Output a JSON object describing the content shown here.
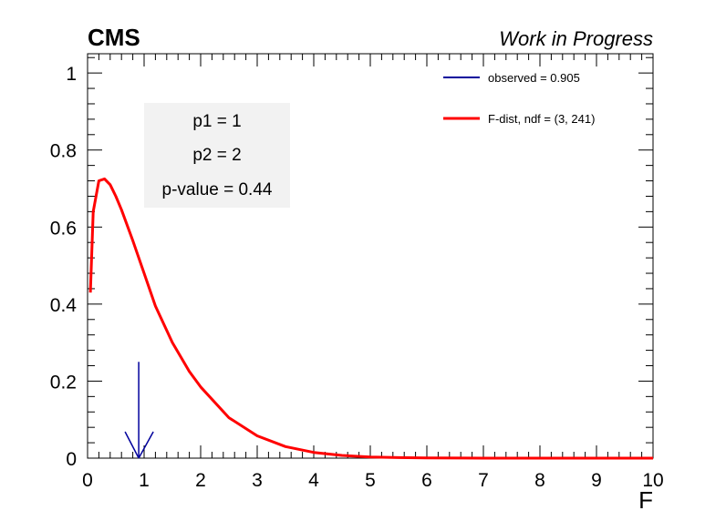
{
  "header": {
    "experiment": "CMS",
    "status": "Work in Progress"
  },
  "chart_data": {
    "type": "line",
    "xlabel": "F",
    "ylabel": "",
    "xlim": [
      0,
      10
    ],
    "ylim": [
      0,
      1.05
    ],
    "x_ticks": [
      0,
      1,
      2,
      3,
      4,
      5,
      6,
      7,
      8,
      9,
      10
    ],
    "x_tick_labels": [
      "0",
      "1",
      "2",
      "3",
      "4",
      "5",
      "6",
      "7",
      "8",
      "9",
      "10"
    ],
    "y_ticks": [
      0,
      0.2,
      0.4,
      0.6,
      0.8,
      1
    ],
    "y_tick_labels": [
      "0",
      "0.2",
      "0.4",
      "0.6",
      "0.8",
      "1"
    ],
    "grid": false,
    "legend_position": "top-right",
    "series": [
      {
        "name": "F-dist, ndf = (3, 241)",
        "color": "#ff0000",
        "x": [
          0.05,
          0.1,
          0.2,
          0.3,
          0.4,
          0.5,
          0.6,
          0.8,
          1.0,
          1.2,
          1.5,
          1.8,
          2.0,
          2.5,
          3.0,
          3.5,
          4.0,
          4.5,
          5.0,
          5.5,
          6.0,
          7.0,
          8.0,
          9.0,
          10.0
        ],
        "y": [
          0.43,
          0.64,
          0.72,
          0.725,
          0.71,
          0.68,
          0.645,
          0.565,
          0.48,
          0.395,
          0.3,
          0.225,
          0.185,
          0.105,
          0.058,
          0.03,
          0.015,
          0.007,
          0.003,
          0.0015,
          0.0007,
          0.0001,
          0.0,
          0.0,
          0.0
        ]
      }
    ],
    "observed": {
      "label": "observed = 0.905",
      "value": 0.905,
      "color": "#00009c"
    },
    "stats": [
      "p1 = 1",
      "p2 = 2",
      "p-value = 0.44"
    ]
  }
}
